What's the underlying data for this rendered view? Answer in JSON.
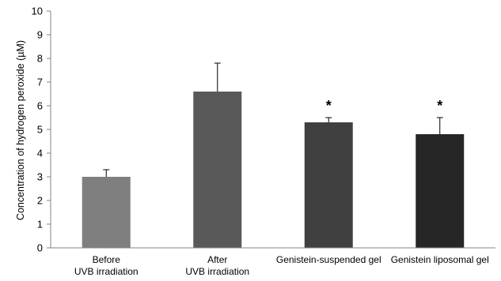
{
  "chart_data": {
    "type": "bar",
    "categories": [
      [
        "Before",
        "UVB irradiation"
      ],
      [
        "After",
        "UVB irradiation"
      ],
      [
        "Genistein-suspended gel"
      ],
      [
        "Genistein liposomal gel"
      ]
    ],
    "values": [
      3.0,
      6.6,
      5.3,
      4.8
    ],
    "errors": [
      0.3,
      1.2,
      0.2,
      0.7
    ],
    "bar_colors": [
      "#7f7f7f",
      "#595959",
      "#404040",
      "#262626"
    ],
    "significance": [
      "",
      "",
      "*",
      "*"
    ],
    "ylabel": "Concentration of hydrogen peroxide (µM)",
    "xlabel": "",
    "title": "",
    "ylim": [
      0,
      10
    ],
    "yticks": [
      "0",
      "1",
      "2",
      "3",
      "4",
      "5",
      "6",
      "7",
      "8",
      "9",
      "10"
    ],
    "grid": false
  }
}
